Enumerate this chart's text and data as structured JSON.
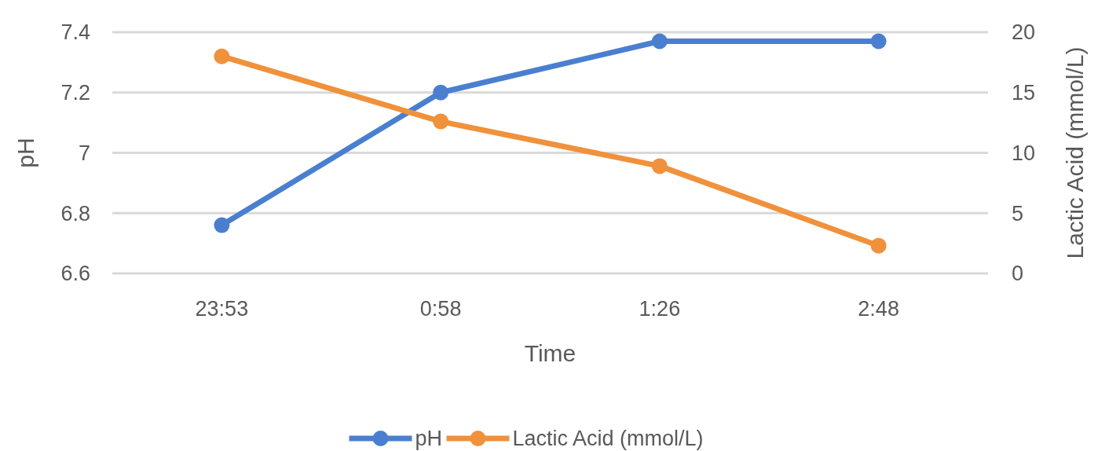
{
  "chart_data": {
    "type": "line",
    "xlabel": "Time",
    "ylabel": "pH",
    "y2label": "Lactic Acid (mmol/L)",
    "categories": [
      "23:53",
      "0:58",
      "1:26",
      "2:48"
    ],
    "series": [
      {
        "name": "pH",
        "color": "#4a7fd0",
        "values": [
          6.76,
          7.2,
          7.37,
          7.37
        ]
      },
      {
        "name": "Lactic Acid (mmol/L)",
        "color": "#f0913b",
        "values": [
          18.0,
          12.6,
          8.9,
          2.3
        ],
        "axis": "y2"
      }
    ],
    "ylim": [
      6.6,
      7.4
    ],
    "yticks": [
      {
        "value": 6.6,
        "label": "6.6"
      },
      {
        "value": 6.8,
        "label": "6.8"
      },
      {
        "value": 7,
        "label": "7"
      },
      {
        "value": 7.2,
        "label": "7.2"
      },
      {
        "value": 7.4,
        "label": "7.4"
      }
    ],
    "y2lim": [
      0,
      20
    ],
    "y2ticks": [
      0,
      5,
      10,
      15,
      20
    ],
    "grid": "y",
    "legend": "bottom",
    "marker": "circle",
    "line_style": "solid"
  }
}
